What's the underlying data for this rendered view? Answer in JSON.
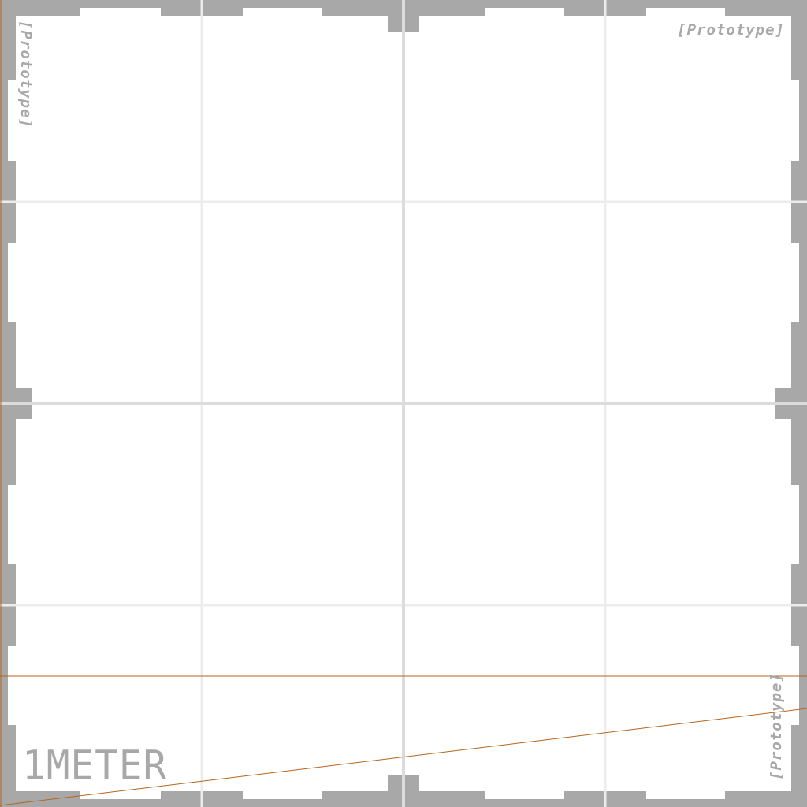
{
  "texture": {
    "watermark": "[Prototype]",
    "scale_label": "1METER",
    "colors": {
      "background": "#ffffff",
      "frame": "#a8a8a8",
      "grid_major": "#dcdcdc",
      "grid_minor": "#ececec",
      "label": "#a8a8a8",
      "guide_line": "#b5651d"
    }
  }
}
